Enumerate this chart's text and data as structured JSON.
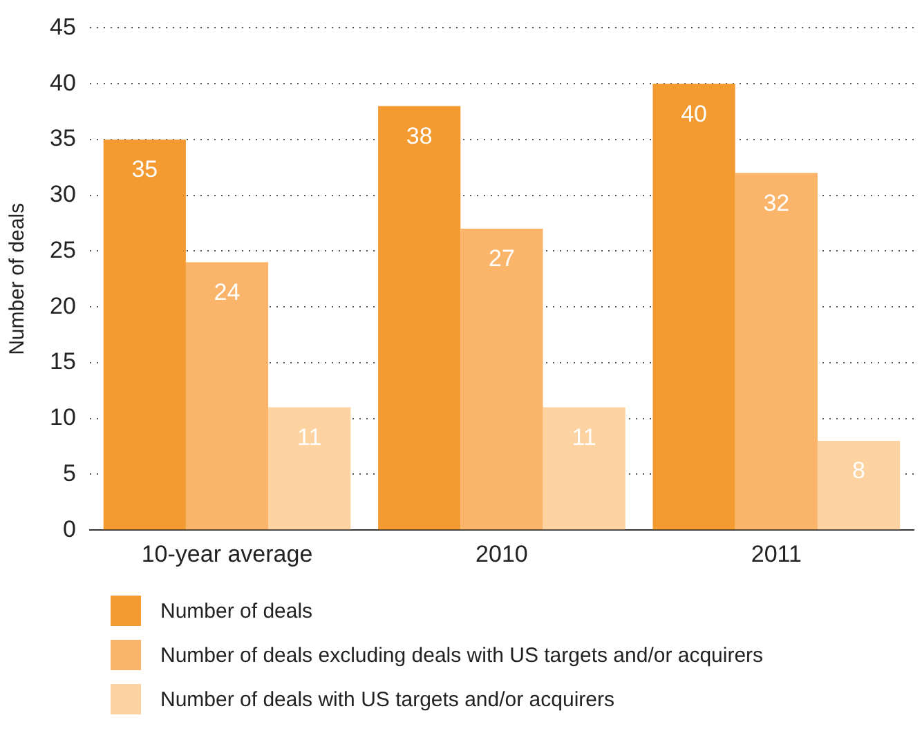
{
  "chart_data": {
    "type": "bar",
    "ylabel": "Number of deals",
    "categories": [
      "10-year average",
      "2010",
      "2011"
    ],
    "series": [
      {
        "name": "Number of deals",
        "color": "#f39a31",
        "values": [
          35,
          38,
          40
        ]
      },
      {
        "name": "Number of deals excluding deals with US targets and/or acquirers",
        "color": "#fab56b",
        "values": [
          24,
          27,
          32
        ]
      },
      {
        "name": "Number of deals with US targets and/or acquirers",
        "color": "#fdd3a2",
        "values": [
          11,
          11,
          8
        ]
      }
    ],
    "ylim": [
      0,
      45
    ],
    "yticks": [
      0,
      5,
      10,
      15,
      20,
      25,
      30,
      35,
      40,
      45
    ],
    "grid": "y",
    "legend": "bottom",
    "data_labels": true
  }
}
